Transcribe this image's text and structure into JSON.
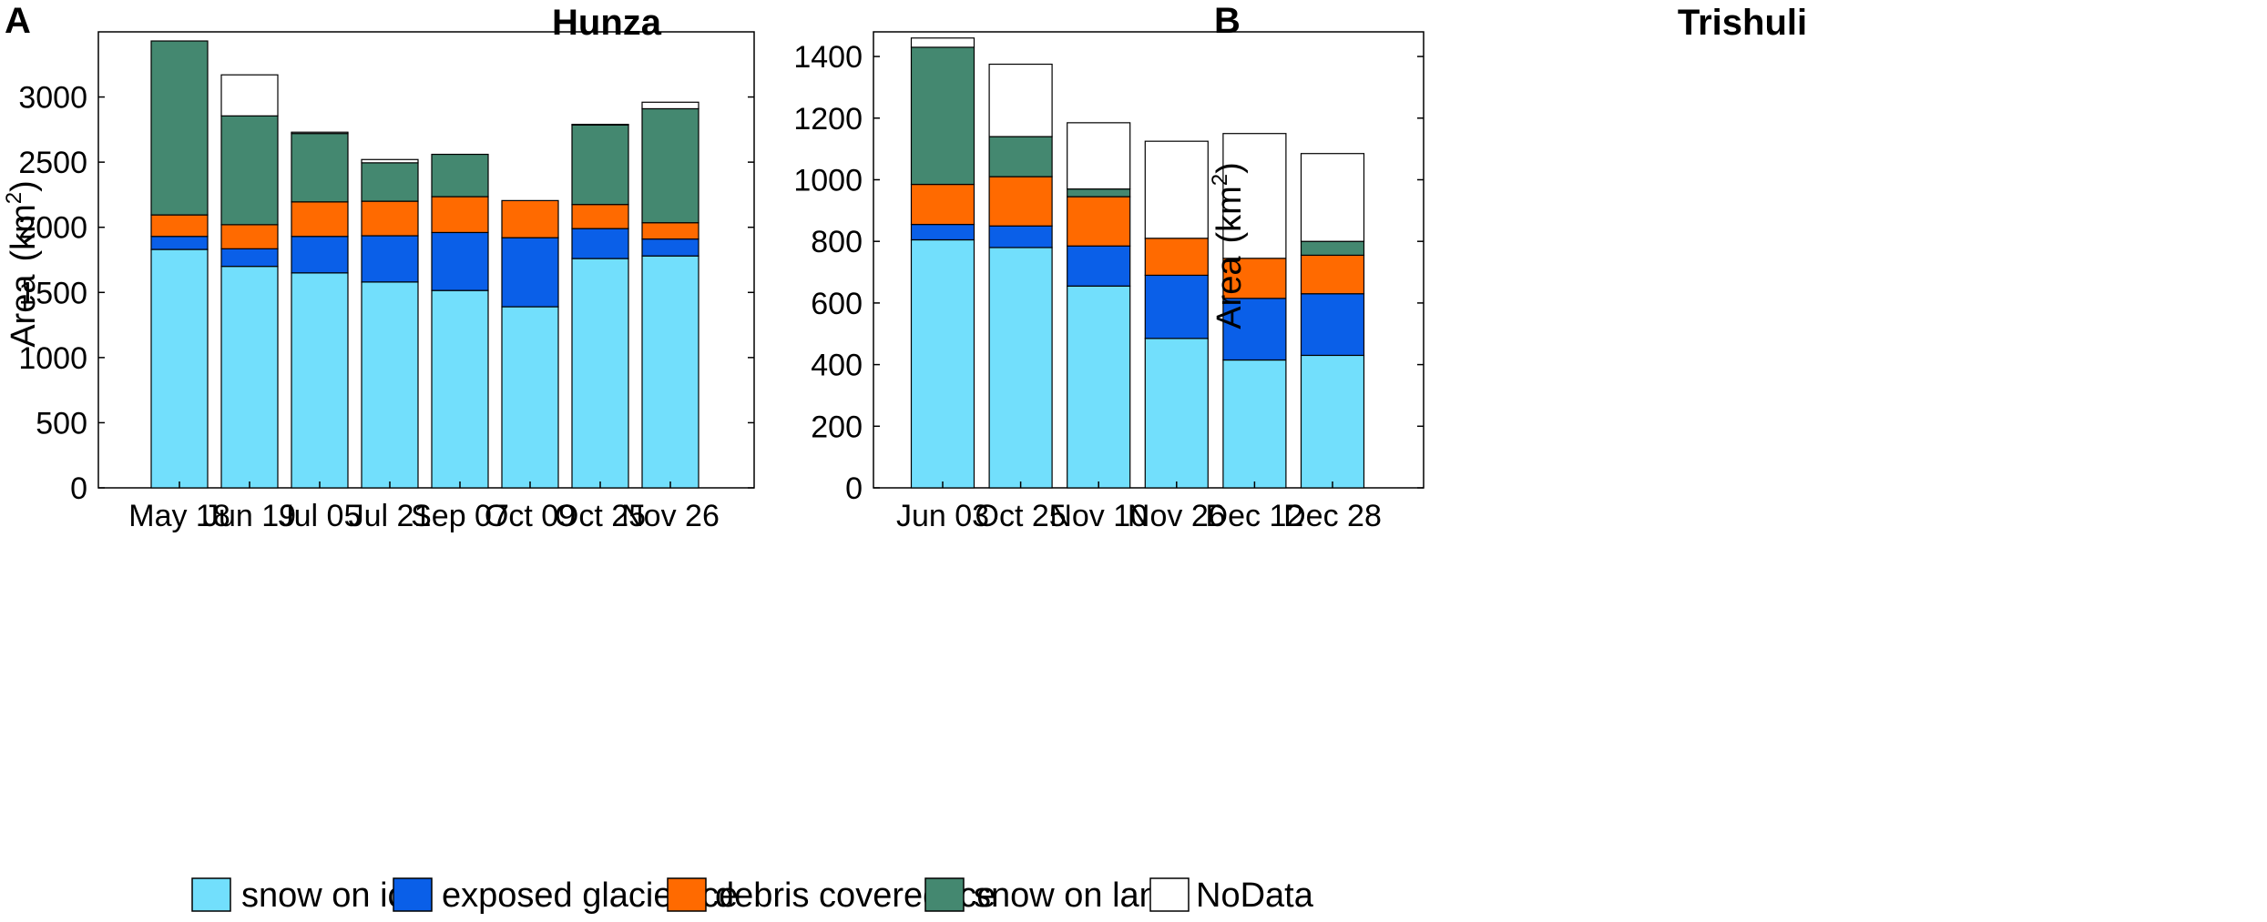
{
  "legend": [
    {
      "key": "snow_on_ice",
      "label": "snow on ice",
      "color": "#72dffc"
    },
    {
      "key": "exposed_glacier_ice",
      "label": "exposed glacier ice",
      "color": "#0a5fe8"
    },
    {
      "key": "debris_covered_ice",
      "label": "debris covered ice",
      "color": "#ff6a00"
    },
    {
      "key": "snow_on_land",
      "label": "snow on land",
      "color": "#448870"
    },
    {
      "key": "nodata",
      "label": "NoData",
      "color": "#ffffff"
    }
  ],
  "chart_data": [
    {
      "panel_letter": "A",
      "type": "bar",
      "stacked": true,
      "title": "Hunza",
      "xlabel": "",
      "ylabel": "Area",
      "ylabel_unit_base": "(km",
      "ylabel_unit_sup": "2",
      "ylabel_unit_close": ")",
      "ylim": [
        0,
        3500
      ],
      "yticks": [
        "0",
        "500",
        "1000",
        "1500",
        "2000",
        "2500",
        "3000"
      ],
      "categories": [
        "May 18",
        "Jun 19",
        "Jul 05",
        "Jul 21",
        "Sep 07",
        "Oct 09",
        "Oct 25",
        "Nov 26"
      ],
      "series": [
        {
          "name": "snow on ice",
          "values": [
            1830,
            1700,
            1650,
            1580,
            1515,
            1390,
            1760,
            1780
          ]
        },
        {
          "name": "exposed glacier ice",
          "values": [
            100,
            135,
            280,
            355,
            445,
            530,
            230,
            130
          ]
        },
        {
          "name": "debris covered ice",
          "values": [
            165,
            185,
            265,
            265,
            275,
            285,
            185,
            125
          ]
        },
        {
          "name": "snow on land",
          "values": [
            1335,
            835,
            525,
            295,
            325,
            0,
            610,
            875
          ]
        },
        {
          "name": "NoData",
          "values": [
            0,
            315,
            10,
            25,
            0,
            0,
            5,
            50
          ]
        }
      ]
    },
    {
      "panel_letter": "B",
      "type": "bar",
      "stacked": true,
      "title": "Trishuli",
      "xlabel": "",
      "ylabel": "Area",
      "ylabel_unit_base": "(km",
      "ylabel_unit_sup": "2",
      "ylabel_unit_close": ")",
      "ylim": [
        0,
        1480
      ],
      "yticks": [
        "0",
        "200",
        "400",
        "600",
        "800",
        "1000",
        "1200",
        "1400"
      ],
      "categories": [
        "Jun 03",
        "Oct 25",
        "Nov 10",
        "Nov 26",
        "Dec 12",
        "Dec 28"
      ],
      "series": [
        {
          "name": "snow on ice",
          "values": [
            805,
            780,
            655,
            485,
            415,
            430
          ]
        },
        {
          "name": "exposed glacier ice",
          "values": [
            50,
            70,
            130,
            205,
            200,
            200
          ]
        },
        {
          "name": "debris covered ice",
          "values": [
            130,
            160,
            160,
            120,
            130,
            125
          ]
        },
        {
          "name": "snow on land",
          "values": [
            445,
            130,
            25,
            0,
            0,
            45
          ]
        },
        {
          "name": "NoData",
          "values": [
            30,
            235,
            215,
            315,
            405,
            285
          ]
        }
      ]
    }
  ]
}
